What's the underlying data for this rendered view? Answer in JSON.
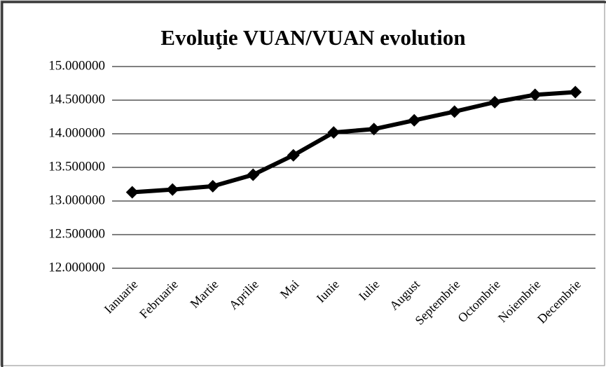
{
  "chart_data": {
    "type": "line",
    "title": "Evoluţie VUAN/VUAN evolution",
    "categories": [
      "Ianuarie",
      "Februarie",
      "Martie",
      "Aprilie",
      "Mai",
      "Iunie",
      "Iulie",
      "August",
      "Septembrie",
      "Octombrie",
      "Noiembrie",
      "Decembrie"
    ],
    "series": [
      {
        "color": "#000000",
        "values": [
          13.13,
          13.17,
          13.22,
          13.39,
          13.68,
          14.02,
          14.07,
          14.2,
          14.33,
          14.47,
          14.58,
          14.62
        ]
      }
    ],
    "ylim": [
      12,
      15
    ],
    "yticks": [
      {
        "value": 12,
        "label": "12.000000"
      },
      {
        "value": 12.5,
        "label": "12.500000"
      },
      {
        "value": 13,
        "label": "13.000000"
      },
      {
        "value": 13.5,
        "label": "13.500000"
      },
      {
        "value": 14,
        "label": "14.000000"
      },
      {
        "value": 14.5,
        "label": "14.500000"
      },
      {
        "value": 15,
        "label": "15.000000"
      }
    ],
    "grid": true
  }
}
